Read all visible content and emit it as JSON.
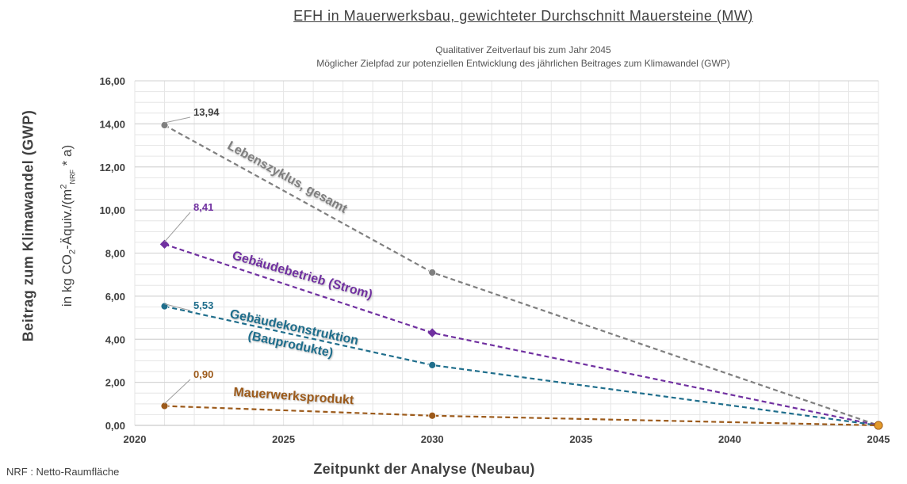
{
  "chart_data": {
    "type": "line",
    "title": "EFH in Mauerwerksbau, gewichteter Durchschnitt Mauersteine (MW)",
    "subtitle": [
      "Qualitativer Zeitverlauf bis zum Jahr 2045",
      "Möglicher Zielpfad zur potenziellen Entwicklung des jährlichen Beitrages zum Klimawandel (GWP)"
    ],
    "ylabel": "Beitrag zum Klimawandel (GWP)",
    "ylabel_unit_prefix": "in kg CO",
    "ylabel_unit_sub1": "2",
    "ylabel_unit_mid": "-Äquiv./(m",
    "ylabel_unit_sup": "2",
    "ylabel_unit_sub2": "NRF",
    "ylabel_unit_end": " * a)",
    "xlabel": "Zeitpunkt der Analyse (Neubau)",
    "footnote": "NRF : Netto-Raumfläche",
    "xlim": [
      2020,
      2045
    ],
    "ylim": [
      0,
      16
    ],
    "x_ticks": [
      2020,
      2025,
      2030,
      2035,
      2040,
      2045
    ],
    "y_ticks": [
      "0,00",
      "2,00",
      "4,00",
      "6,00",
      "8,00",
      "10,00",
      "12,00",
      "14,00",
      "16,00"
    ],
    "grid": true,
    "series": [
      {
        "name": "Lebenszyklus, gesamt",
        "x": [
          2021,
          2030,
          2045
        ],
        "y": [
          13.94,
          7.1,
          0
        ],
        "color": "#7f7f7f",
        "marker": "circle",
        "first_label": "13,94"
      },
      {
        "name": "Gebäudebetrieb (Strom)",
        "x": [
          2021,
          2030,
          2045
        ],
        "y": [
          8.41,
          4.3,
          0
        ],
        "color": "#7030a0",
        "marker": "diamond",
        "first_label": "8,41"
      },
      {
        "name_lines": [
          "Gebäudekonstruktion",
          "(Bauprodukte)"
        ],
        "x": [
          2021,
          2030,
          2045
        ],
        "y": [
          5.53,
          2.8,
          0
        ],
        "color": "#1f6e8c",
        "marker": "circle",
        "first_label": "5,53"
      },
      {
        "name": "Mauerwerksprodukt",
        "x": [
          2021,
          2030,
          2045
        ],
        "y": [
          0.9,
          0.45,
          0
        ],
        "color": "#9c5a1a",
        "marker": "circle",
        "first_label": "0,90"
      }
    ]
  }
}
